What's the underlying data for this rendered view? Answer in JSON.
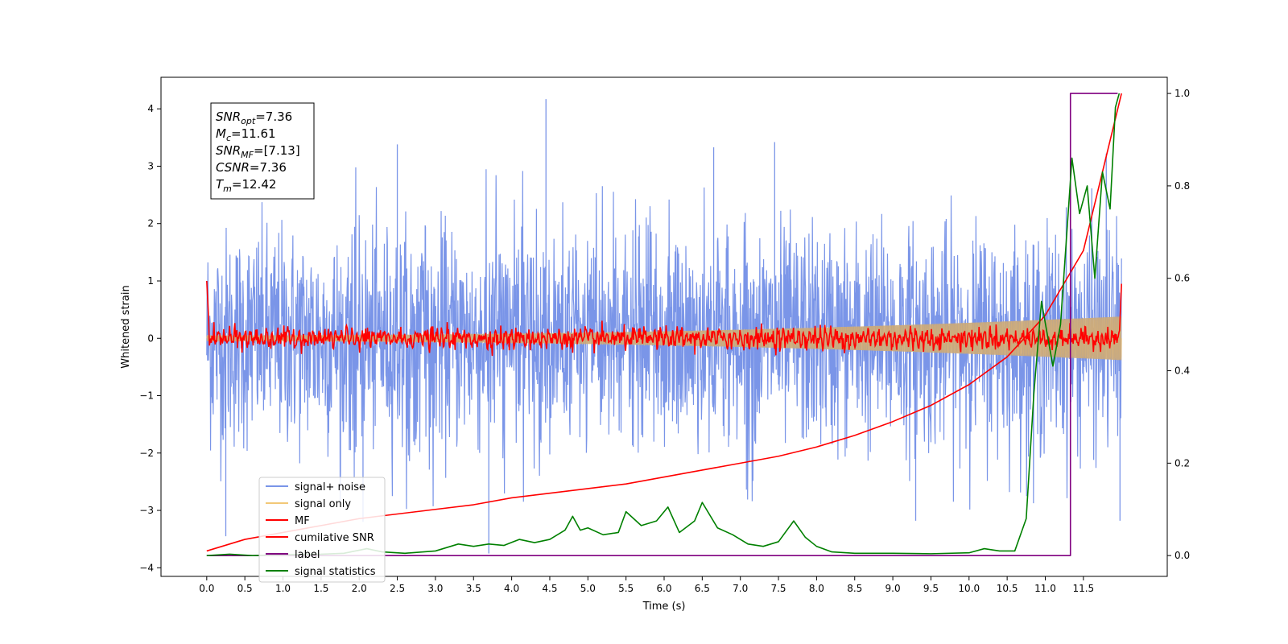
{
  "chart_data": {
    "type": "line",
    "title": "",
    "xlabel": "Time (s)",
    "ylabel": "Whitened strain",
    "ylabel_right": "",
    "xlim": [
      -0.6,
      12.6
    ],
    "ylim": [
      -4.15,
      4.55
    ],
    "ylim_right": [
      -0.045,
      1.035
    ],
    "x_ticks": [
      0.0,
      0.5,
      1.0,
      1.5,
      2.0,
      2.5,
      3.0,
      3.5,
      4.0,
      4.5,
      5.0,
      5.5,
      6.0,
      6.5,
      7.0,
      7.5,
      8.0,
      8.5,
      9.0,
      9.5,
      10.0,
      10.5,
      11.0,
      11.5
    ],
    "x_tick_labels": [
      "0.0",
      "0.5",
      "1.0",
      "1.5",
      "2.0",
      "2.5",
      "3.0",
      "3.5",
      "4.0",
      "4.5",
      "5.0",
      "5.5",
      "6.0",
      "6.5",
      "7.0",
      "7.5",
      "8.0",
      "8.5",
      "9.0",
      "9.5",
      "10.0",
      "10.5",
      "11.0",
      "11.5"
    ],
    "y_ticks": [
      -4,
      -3,
      -2,
      -1,
      0,
      1,
      2,
      3,
      4
    ],
    "y_tick_labels": [
      "−4",
      "−3",
      "−2",
      "−1",
      "0",
      "1",
      "2",
      "3",
      "4"
    ],
    "y_ticks_right": [
      0.0,
      0.2,
      0.4,
      0.6,
      0.8,
      1.0
    ],
    "y_tick_labels_right": [
      "0.0",
      "0.2",
      "0.4",
      "0.6",
      "0.8",
      "1.0"
    ],
    "grid": false,
    "legend_position": "bottom-left",
    "info_box": {
      "lines": [
        {
          "base": "SNR",
          "sub": "opt",
          "value": "=7.36"
        },
        {
          "base": "M",
          "sub": "c",
          "value": "=11.61"
        },
        {
          "base": "SNR",
          "sub": "MF",
          "value": "=[7.13]"
        },
        {
          "base": "CSNR",
          "sub": "",
          "value": "=7.36"
        },
        {
          "base": "T",
          "sub": "m",
          "value": "=12.42"
        }
      ]
    },
    "series": [
      {
        "name": "signal+ noise",
        "axis": "left",
        "color": "#7a95e8",
        "style": "noise",
        "x_range": [
          0.0,
          12.0
        ],
        "mean": 0.0,
        "std": 0.95,
        "peaks": [
          {
            "x": 0.25,
            "y": -3.45
          },
          {
            "x": 2.05,
            "y": -3.2
          },
          {
            "x": 2.5,
            "y": 3.38
          },
          {
            "x": 3.7,
            "y": -3.75
          },
          {
            "x": 4.45,
            "y": 4.17
          },
          {
            "x": 6.65,
            "y": 3.33
          },
          {
            "x": 7.45,
            "y": 3.42
          },
          {
            "x": 9.3,
            "y": -3.18
          },
          {
            "x": 11.8,
            "y": 3.22
          },
          {
            "x": 11.98,
            "y": -3.18
          }
        ]
      },
      {
        "name": "signal only",
        "axis": "left",
        "color": "#f2c877",
        "style": "chirp",
        "x_range": [
          0.0,
          12.0
        ],
        "amplitude_start": 0.05,
        "amplitude_end": 0.38
      },
      {
        "name": "MF",
        "axis": "left",
        "color": "#ff0000",
        "style": "oscillation",
        "x_range": [
          0.0,
          12.0
        ],
        "start_value": 1.0,
        "amplitude": 0.16,
        "end_value": 0.95
      },
      {
        "name": "cumilative SNR",
        "axis": "right",
        "color": "#ff0000",
        "style": "line",
        "x": [
          0.0,
          0.5,
          1.0,
          1.5,
          2.0,
          2.5,
          3.0,
          3.5,
          4.0,
          4.5,
          5.0,
          5.5,
          6.0,
          6.5,
          7.0,
          7.5,
          8.0,
          8.5,
          9.0,
          9.5,
          10.0,
          10.5,
          11.0,
          11.5,
          12.0
        ],
        "values": [
          0.01,
          0.035,
          0.05,
          0.065,
          0.08,
          0.09,
          0.1,
          0.11,
          0.125,
          0.135,
          0.145,
          0.155,
          0.17,
          0.185,
          0.2,
          0.215,
          0.235,
          0.26,
          0.29,
          0.325,
          0.37,
          0.43,
          0.52,
          0.66,
          1.0
        ]
      },
      {
        "name": "label",
        "axis": "right",
        "color": "#800080",
        "style": "line",
        "x": [
          0.0,
          11.33,
          11.33,
          11.95
        ],
        "values": [
          0.0,
          0.0,
          1.0,
          1.0
        ]
      },
      {
        "name": "signal statistics",
        "axis": "right",
        "color": "#008000",
        "style": "line",
        "x": [
          0.0,
          0.3,
          0.6,
          1.0,
          1.5,
          1.8,
          2.1,
          2.3,
          2.6,
          3.0,
          3.3,
          3.5,
          3.7,
          3.9,
          4.1,
          4.3,
          4.5,
          4.7,
          4.8,
          4.9,
          5.0,
          5.2,
          5.4,
          5.5,
          5.7,
          5.9,
          6.05,
          6.2,
          6.4,
          6.5,
          6.7,
          6.9,
          7.1,
          7.3,
          7.5,
          7.7,
          7.85,
          8.0,
          8.2,
          8.5,
          9.0,
          9.5,
          10.0,
          10.2,
          10.4,
          10.6,
          10.75,
          10.85,
          10.95,
          11.1,
          11.2,
          11.35,
          11.45,
          11.55,
          11.65,
          11.75,
          11.85,
          11.92,
          11.97
        ],
        "values": [
          0.0,
          0.003,
          0.0,
          0.002,
          0.003,
          0.005,
          0.015,
          0.008,
          0.005,
          0.01,
          0.025,
          0.02,
          0.025,
          0.022,
          0.035,
          0.028,
          0.035,
          0.055,
          0.085,
          0.055,
          0.06,
          0.045,
          0.05,
          0.095,
          0.065,
          0.075,
          0.105,
          0.05,
          0.075,
          0.115,
          0.06,
          0.045,
          0.025,
          0.02,
          0.03,
          0.075,
          0.04,
          0.02,
          0.008,
          0.005,
          0.005,
          0.004,
          0.006,
          0.015,
          0.01,
          0.01,
          0.08,
          0.35,
          0.55,
          0.41,
          0.5,
          0.86,
          0.74,
          0.8,
          0.6,
          0.83,
          0.75,
          0.97,
          1.0
        ]
      }
    ]
  }
}
